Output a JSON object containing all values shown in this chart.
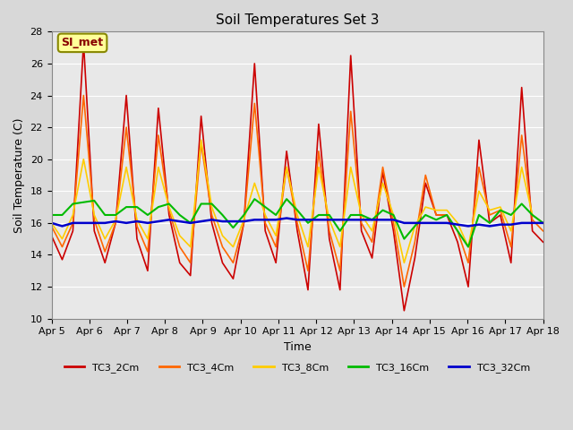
{
  "title": "Soil Temperatures Set 3",
  "xlabel": "Time",
  "ylabel": "Soil Temperature (C)",
  "ylim": [
    10,
    28
  ],
  "yticks": [
    10,
    12,
    14,
    16,
    18,
    20,
    22,
    24,
    26,
    28
  ],
  "background_color": "#d8d8d8",
  "plot_bg_color": "#e8e8e8",
  "annotation_text": "SI_met",
  "annotation_bg": "#ffff99",
  "annotation_border": "#888800",
  "series_colors": {
    "TC3_2Cm": "#cc0000",
    "TC3_4Cm": "#ff6600",
    "TC3_8Cm": "#ffcc00",
    "TC3_16Cm": "#00bb00",
    "TC3_32Cm": "#0000cc"
  },
  "x_labels": [
    "Apr 5",
    "Apr 6",
    "Apr 7",
    "Apr 8",
    "Apr 9",
    "Apr 10",
    "Apr 11",
    "Apr 12",
    "Apr 13",
    "Apr 14",
    "Apr 15",
    "Apr 16",
    "Apr 17",
    "Apr 18"
  ],
  "TC3_2Cm": [
    15.2,
    13.7,
    15.5,
    27.3,
    15.5,
    13.5,
    16.0,
    24.0,
    15.0,
    13.0,
    23.2,
    16.5,
    13.5,
    12.7,
    22.7,
    16.0,
    13.5,
    12.5,
    16.0,
    26.0,
    15.5,
    13.5,
    20.5,
    15.5,
    11.8,
    22.2,
    15.0,
    11.8,
    26.5,
    15.5,
    13.8,
    19.2,
    15.5,
    10.5,
    13.8,
    18.5,
    16.5,
    16.5,
    14.8,
    12.0,
    21.2,
    16.0,
    16.5,
    13.5,
    24.5,
    15.5,
    14.8
  ],
  "TC3_4Cm": [
    15.8,
    14.5,
    16.0,
    24.0,
    16.2,
    14.2,
    16.0,
    22.0,
    15.8,
    14.2,
    21.5,
    16.8,
    14.5,
    13.5,
    21.0,
    16.5,
    14.5,
    13.5,
    16.0,
    23.5,
    16.0,
    14.5,
    19.5,
    16.0,
    13.0,
    20.5,
    15.5,
    13.0,
    23.0,
    16.0,
    14.8,
    19.5,
    16.0,
    12.0,
    14.8,
    19.0,
    16.5,
    16.5,
    15.5,
    13.5,
    19.5,
    16.5,
    16.8,
    14.5,
    21.5,
    16.2,
    15.5
  ],
  "TC3_8Cm": [
    16.0,
    15.0,
    16.5,
    20.0,
    16.5,
    15.0,
    16.2,
    19.5,
    16.2,
    15.0,
    19.5,
    17.0,
    15.2,
    14.5,
    21.2,
    17.0,
    15.2,
    14.5,
    16.2,
    18.5,
    16.5,
    15.2,
    19.5,
    16.5,
    14.5,
    19.5,
    16.2,
    14.5,
    19.5,
    16.5,
    15.5,
    18.5,
    16.5,
    13.5,
    15.8,
    17.0,
    16.8,
    16.8,
    16.0,
    14.5,
    18.0,
    16.8,
    17.0,
    15.5,
    19.5,
    16.5,
    16.0
  ],
  "TC3_16Cm": [
    16.5,
    16.5,
    17.2,
    17.3,
    17.4,
    16.5,
    16.5,
    17.0,
    17.0,
    16.5,
    17.0,
    17.2,
    16.5,
    16.0,
    17.2,
    17.2,
    16.5,
    15.7,
    16.5,
    17.5,
    17.0,
    16.5,
    17.5,
    16.8,
    16.0,
    16.5,
    16.5,
    15.5,
    16.5,
    16.5,
    16.2,
    16.8,
    16.5,
    15.0,
    15.8,
    16.5,
    16.2,
    16.5,
    15.5,
    14.5,
    16.5,
    16.0,
    16.8,
    16.5,
    17.2,
    16.5,
    16.0
  ],
  "TC3_32Cm": [
    16.0,
    15.8,
    16.0,
    16.0,
    16.0,
    16.0,
    16.1,
    16.0,
    16.1,
    16.0,
    16.1,
    16.2,
    16.1,
    16.0,
    16.1,
    16.2,
    16.1,
    16.1,
    16.1,
    16.2,
    16.2,
    16.2,
    16.3,
    16.2,
    16.2,
    16.2,
    16.2,
    16.2,
    16.2,
    16.2,
    16.2,
    16.2,
    16.2,
    16.0,
    16.0,
    16.0,
    16.0,
    16.0,
    15.9,
    15.8,
    15.9,
    15.8,
    15.9,
    15.9,
    16.0,
    16.0,
    16.0
  ]
}
